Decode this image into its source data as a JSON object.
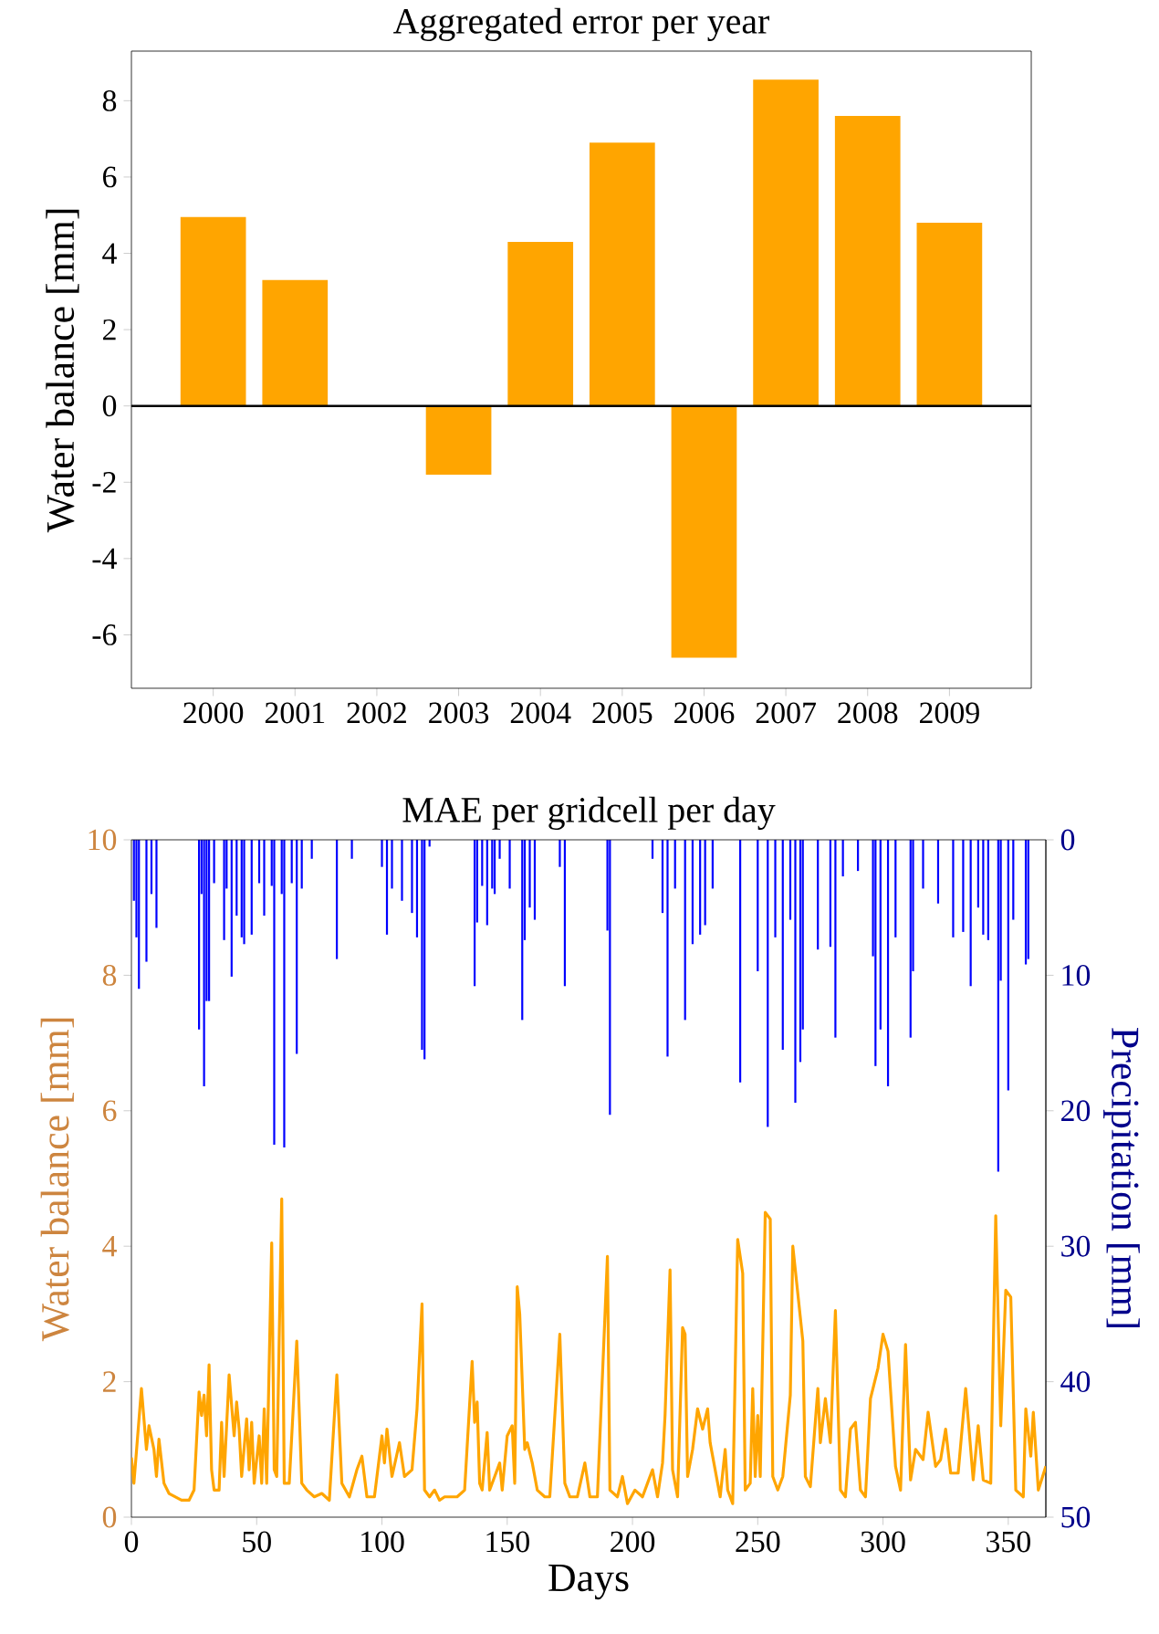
{
  "chart_data": [
    {
      "type": "bar",
      "title": "Aggregated error per year",
      "ylabel": "Water balance [mm]",
      "categories": [
        "2000",
        "2001",
        "2002",
        "2003",
        "2004",
        "2005",
        "2006",
        "2007",
        "2008",
        "2009"
      ],
      "values": [
        4.95,
        3.3,
        null,
        -1.8,
        4.3,
        6.9,
        -6.6,
        8.55,
        7.6,
        4.8
      ],
      "color": "#ffa500",
      "ylim": [
        -7.4,
        9.3
      ],
      "yticks": [
        -6,
        -4,
        -2,
        0,
        2,
        4,
        6,
        8
      ],
      "ref_lines": [
        {
          "axis": "y",
          "value": 0,
          "color": "#000000"
        }
      ]
    },
    {
      "type": "line",
      "title": "MAE per gridcell per day",
      "xlabel": "Days",
      "ylabel": "Water balance [mm]",
      "y2label": "Precipitation [mm]",
      "xlim": [
        0,
        365
      ],
      "xticks": [
        0,
        50,
        100,
        150,
        200,
        250,
        300,
        350
      ],
      "ylim": [
        0,
        10
      ],
      "yticks": [
        0,
        2,
        4,
        6,
        8,
        10
      ],
      "y2lim": [
        50,
        0
      ],
      "y2ticks": [
        0,
        10,
        20,
        30,
        40,
        50
      ],
      "series": [
        {
          "type": "bar",
          "axis": "y2",
          "color": "#0000ff",
          "x": [
            1,
            2,
            3,
            6,
            8,
            10,
            27,
            28,
            29,
            30,
            31,
            33,
            37,
            38,
            40,
            42,
            44,
            45,
            48,
            51,
            53,
            56,
            57,
            60,
            61,
            64,
            66,
            68,
            72,
            82,
            88,
            100,
            102,
            104,
            108,
            112,
            114,
            116,
            117,
            119,
            137,
            138,
            140,
            142,
            144,
            145,
            147,
            151,
            156,
            157,
            159,
            161,
            171,
            173,
            190,
            191,
            208,
            212,
            214,
            217,
            221,
            224,
            227,
            229,
            232,
            243,
            250,
            254,
            257,
            260,
            263,
            265,
            267,
            268,
            274,
            279,
            281,
            284,
            290,
            296,
            297,
            299,
            302,
            305,
            311,
            312,
            316,
            322,
            328,
            332,
            335,
            338,
            340,
            342,
            346,
            347,
            350,
            352,
            357,
            358
          ],
          "values": [
            4.5,
            7.2,
            11,
            9,
            4,
            6.5,
            14,
            4,
            18.2,
            11.9,
            11.9,
            3.2,
            7.4,
            3.6,
            10.1,
            5.6,
            7.2,
            7.7,
            7,
            3.2,
            5.6,
            3.4,
            22.5,
            4,
            22.7,
            3.2,
            15.8,
            3.6,
            1.4,
            8.8,
            1.4,
            2,
            7,
            3.6,
            4.5,
            5.4,
            7.2,
            15.5,
            16.2,
            0.5,
            10.8,
            6.1,
            3.4,
            6.3,
            3.6,
            4,
            1.4,
            3.6,
            13.3,
            7.4,
            5,
            5.9,
            2,
            10.8,
            6.7,
            20.3,
            1.4,
            5.4,
            16,
            3.6,
            13.3,
            7.7,
            7,
            6.3,
            3.6,
            17.9,
            9.7,
            21.2,
            7.2,
            15.5,
            5.9,
            19.4,
            16.4,
            14,
            8.1,
            7.9,
            14.6,
            2.7,
            2.3,
            8.6,
            16.7,
            14,
            18.2,
            7.2,
            14.6,
            9.7,
            3.6,
            4.7,
            7.2,
            6.8,
            10.8,
            5,
            7,
            7.4,
            24.5,
            10.4,
            18.5,
            5.9,
            9.2,
            8.8
          ]
        },
        {
          "type": "line",
          "color": "#ffa500",
          "x": [
            0,
            1,
            4,
            6,
            7,
            9,
            10,
            11,
            13,
            15,
            20,
            23,
            25,
            27,
            28,
            29,
            30,
            31,
            32,
            33,
            35,
            36,
            37,
            39,
            41,
            42,
            43,
            44,
            46,
            47,
            48,
            49,
            51,
            52,
            53,
            54,
            56,
            57,
            58,
            60,
            61,
            63,
            66,
            68,
            70,
            73,
            76,
            79,
            82,
            84,
            87,
            90,
            92,
            94,
            97,
            100,
            101,
            102,
            104,
            107,
            109,
            112,
            114,
            116,
            117,
            119,
            121,
            123,
            125,
            130,
            133,
            136,
            137,
            138,
            139,
            140,
            142,
            143,
            145,
            147,
            148,
            150,
            152,
            153,
            154,
            155,
            157,
            158,
            160,
            162,
            165,
            167,
            171,
            173,
            175,
            178,
            181,
            183,
            186,
            190,
            191,
            194,
            196,
            198,
            201,
            204,
            206,
            208,
            210,
            212,
            213,
            215,
            216,
            218,
            220,
            221,
            222,
            224,
            226,
            228,
            230,
            231,
            233,
            235,
            237,
            238,
            240,
            242,
            244,
            245,
            247,
            248,
            249,
            250,
            251,
            253,
            255,
            256,
            258,
            260,
            261,
            263,
            264,
            268,
            269,
            271,
            274,
            275,
            277,
            279,
            281,
            283,
            285,
            287,
            289,
            291,
            293,
            295,
            298,
            300,
            302,
            305,
            307,
            309,
            311,
            313,
            316,
            318,
            321,
            323,
            325,
            327,
            330,
            333,
            336,
            338,
            340,
            343,
            345,
            347,
            349,
            351,
            353,
            356,
            357,
            359,
            360,
            362,
            365
          ],
          "values": [
            0.88,
            0.5,
            1.9,
            1.0,
            1.35,
            1.0,
            0.6,
            1.15,
            0.5,
            0.35,
            0.25,
            0.25,
            0.4,
            1.85,
            1.5,
            1.8,
            1.2,
            2.25,
            0.7,
            0.4,
            0.4,
            1.4,
            0.6,
            2.1,
            1.2,
            1.7,
            1.3,
            0.6,
            1.45,
            0.7,
            1.4,
            0.5,
            1.2,
            0.5,
            1.6,
            0.5,
            4.05,
            0.7,
            0.6,
            4.7,
            0.5,
            0.5,
            2.6,
            0.5,
            0.4,
            0.3,
            0.35,
            0.25,
            2.1,
            0.5,
            0.3,
            0.7,
            0.9,
            0.3,
            0.3,
            1.2,
            0.8,
            1.3,
            0.6,
            1.1,
            0.6,
            0.7,
            1.6,
            3.15,
            0.4,
            0.3,
            0.4,
            0.25,
            0.3,
            0.3,
            0.4,
            2.3,
            1.4,
            1.7,
            0.5,
            0.4,
            1.25,
            0.4,
            0.6,
            0.8,
            0.4,
            1.2,
            1.35,
            0.5,
            3.4,
            3.0,
            1.0,
            1.1,
            0.8,
            0.4,
            0.3,
            0.3,
            2.7,
            0.5,
            0.3,
            0.3,
            0.8,
            0.3,
            0.3,
            3.85,
            0.4,
            0.3,
            0.6,
            0.2,
            0.4,
            0.3,
            0.5,
            0.7,
            0.3,
            0.8,
            1.5,
            3.65,
            0.7,
            0.3,
            2.8,
            2.7,
            0.6,
            1.0,
            1.6,
            1.3,
            1.6,
            1.1,
            0.7,
            0.3,
            1.0,
            0.4,
            0.2,
            4.1,
            3.6,
            0.4,
            0.5,
            1.9,
            0.6,
            1.5,
            0.6,
            4.5,
            4.4,
            0.6,
            0.4,
            0.6,
            1.0,
            1.8,
            4.0,
            2.6,
            0.6,
            0.45,
            1.9,
            1.1,
            1.75,
            1.1,
            3.05,
            0.4,
            0.3,
            1.3,
            1.4,
            0.4,
            0.3,
            1.75,
            2.2,
            2.7,
            2.45,
            0.75,
            0.4,
            2.55,
            0.55,
            1.0,
            0.85,
            1.55,
            0.75,
            0.85,
            1.3,
            0.65,
            0.65,
            1.9,
            0.55,
            1.35,
            0.55,
            0.5,
            4.45,
            1.35,
            3.35,
            3.25,
            0.4,
            0.3,
            1.6,
            0.9,
            1.55,
            0.4,
            0.75
          ]
        }
      ]
    }
  ]
}
